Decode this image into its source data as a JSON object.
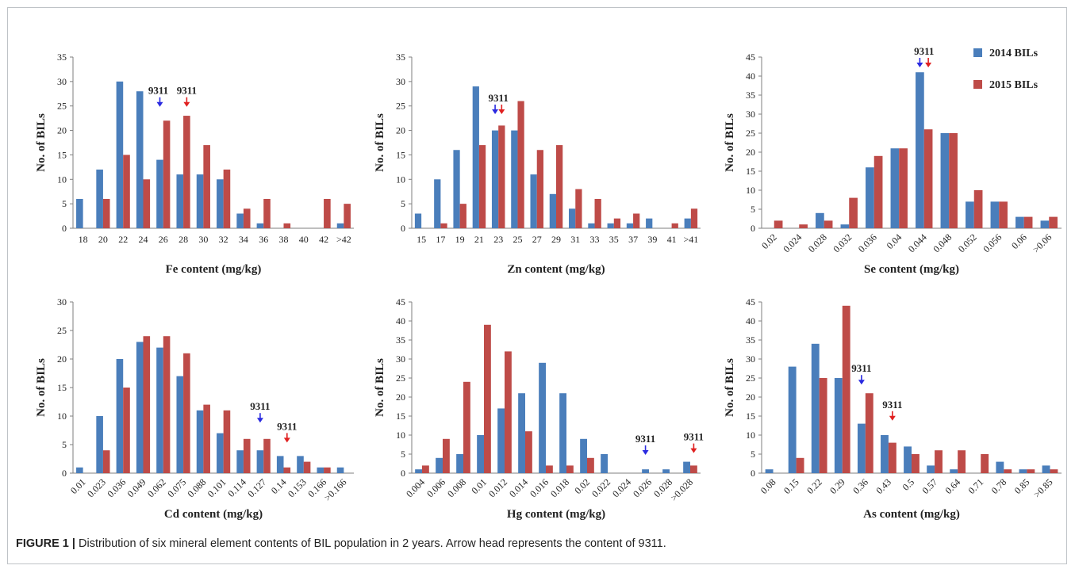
{
  "caption": {
    "label": "FIGURE 1 |",
    "text": "Distribution of six mineral element contents of BIL population in 2 years. Arrow head represents the content of 9311."
  },
  "colors": {
    "s2014": "#4a7ebb",
    "s2015": "#be4b48",
    "arrow2014": "#2a2ae0",
    "arrow2015": "#e02020",
    "axis": "#7f7f7f"
  },
  "legend": [
    {
      "name": "2014 BILs",
      "color": "#4a7ebb"
    },
    {
      "name": "2015 BILs",
      "color": "#be4b48"
    }
  ],
  "chart_data": [
    {
      "type": "bar",
      "title": "",
      "xlabel": "Fe content (mg/kg)",
      "ylabel": "No. of BILs",
      "ylim": [
        0,
        35
      ],
      "ystep": 5,
      "categories": [
        "18",
        "20",
        "22",
        "24",
        "26",
        "28",
        "30",
        "32",
        "34",
        "36",
        "38",
        "40",
        "42",
        ">42"
      ],
      "rotated_ticks": false,
      "series": [
        {
          "name": "2014 BILs",
          "values": [
            6,
            12,
            30,
            28,
            14,
            11,
            11,
            10,
            3,
            1,
            0,
            0,
            0,
            1
          ]
        },
        {
          "name": "2015 BILs",
          "values": [
            0,
            6,
            15,
            10,
            22,
            23,
            17,
            12,
            4,
            6,
            1,
            0,
            6,
            5
          ]
        }
      ],
      "annotations": [
        {
          "label": "9311",
          "series": 0,
          "category": 4,
          "y": 25
        },
        {
          "label": "9311",
          "series": 1,
          "category": 5,
          "y": 25
        }
      ]
    },
    {
      "type": "bar",
      "title": "",
      "xlabel": "Zn content (mg/kg)",
      "ylabel": "No. of BILs",
      "ylim": [
        0,
        35
      ],
      "ystep": 5,
      "categories": [
        "15",
        "17",
        "19",
        "21",
        "23",
        "25",
        "27",
        "29",
        "31",
        "33",
        "35",
        "37",
        "39",
        "41",
        ">41"
      ],
      "rotated_ticks": false,
      "series": [
        {
          "name": "2014 BILs",
          "values": [
            3,
            10,
            16,
            29,
            20,
            20,
            11,
            7,
            4,
            1,
            1,
            1,
            2,
            0,
            2
          ]
        },
        {
          "name": "2015 BILs",
          "values": [
            0,
            1,
            5,
            17,
            21,
            26,
            16,
            17,
            8,
            6,
            2,
            3,
            0,
            1,
            4
          ]
        }
      ],
      "annotations": [
        {
          "label": "9311",
          "series": 0,
          "category": 4,
          "y": 23.5
        },
        {
          "label": "9311",
          "series": 1,
          "category": 4,
          "y": 23.5
        }
      ]
    },
    {
      "type": "bar",
      "title": "",
      "xlabel": "Se content (mg/kg)",
      "ylabel": "No. of BILs",
      "ylim": [
        0,
        45
      ],
      "ystep": 5,
      "categories": [
        "0.02",
        "0.024",
        "0.028",
        "0.032",
        "0.036",
        "0.04",
        "0.044",
        "0.048",
        "0.052",
        "0.056",
        "0.06",
        ">0.06"
      ],
      "rotated_ticks": true,
      "series": [
        {
          "name": "2014 BILs",
          "values": [
            0,
            0,
            4,
            1,
            16,
            21,
            41,
            25,
            7,
            7,
            3,
            2
          ]
        },
        {
          "name": "2015 BILs",
          "values": [
            2,
            1,
            2,
            8,
            19,
            21,
            26,
            25,
            10,
            7,
            3,
            3
          ]
        }
      ],
      "annotations": [
        {
          "label": "9311",
          "series": 0,
          "category": 6,
          "y": 42.5
        },
        {
          "label": "9311",
          "series": 1,
          "category": 6,
          "y": 42.5
        }
      ],
      "legend": "top-right"
    },
    {
      "type": "bar",
      "title": "",
      "xlabel": "Cd content (mg/kg)",
      "ylabel": "No. of BILs",
      "ylim": [
        0,
        30
      ],
      "ystep": 5,
      "categories": [
        "0.01",
        "0.023",
        "0.036",
        "0.049",
        "0.062",
        "0.075",
        "0.088",
        "0.101",
        "0.114",
        "0.127",
        "0.14",
        "0.153",
        "0.166",
        ">0.166"
      ],
      "rotated_ticks": true,
      "series": [
        {
          "name": "2014 BILs",
          "values": [
            1,
            10,
            20,
            23,
            22,
            17,
            11,
            7,
            4,
            4,
            3,
            3,
            1,
            1
          ]
        },
        {
          "name": "2015 BILs",
          "values": [
            0,
            4,
            15,
            24,
            24,
            21,
            12,
            11,
            6,
            6,
            1,
            2,
            1,
            0
          ]
        }
      ],
      "annotations": [
        {
          "label": "9311",
          "series": 0,
          "category": 9,
          "y": 9
        },
        {
          "label": "9311",
          "series": 1,
          "category": 10,
          "y": 5.5
        }
      ]
    },
    {
      "type": "bar",
      "title": "",
      "xlabel": "Hg content (mg/kg)",
      "ylabel": "No. of BILs",
      "ylim": [
        0,
        45
      ],
      "ystep": 5,
      "categories": [
        "0.004",
        "0.006",
        "0.008",
        "0.01",
        "0.012",
        "0.014",
        "0.016",
        "0.018",
        "0.02",
        "0.022",
        "0.024",
        "0.026",
        "0.028",
        ">0.028"
      ],
      "rotated_ticks": true,
      "series": [
        {
          "name": "2014 BILs",
          "values": [
            1,
            4,
            5,
            10,
            17,
            21,
            29,
            21,
            9,
            5,
            0,
            1,
            1,
            3
          ]
        },
        {
          "name": "2015 BILs",
          "values": [
            2,
            9,
            24,
            39,
            32,
            11,
            2,
            2,
            4,
            0,
            0,
            0,
            0,
            2
          ]
        }
      ],
      "annotations": [
        {
          "label": "9311",
          "series": 0,
          "category": 11,
          "y": 5
        },
        {
          "label": "9311",
          "series": 1,
          "category": 13,
          "y": 5.5
        }
      ]
    },
    {
      "type": "bar",
      "title": "",
      "xlabel": "As content (mg/kg)",
      "ylabel": "No. of BILs",
      "ylim": [
        0,
        45
      ],
      "ystep": 5,
      "categories": [
        "0.08",
        "0.15",
        "0.22",
        "0.29",
        "0.36",
        "0.43",
        "0.5",
        "0.57",
        "0.64",
        "0.71",
        "0.78",
        "0.85",
        ">0.85"
      ],
      "rotated_ticks": true,
      "series": [
        {
          "name": "2014 BILs",
          "values": [
            1,
            28,
            34,
            25,
            13,
            10,
            7,
            2,
            1,
            0,
            3,
            1,
            2
          ]
        },
        {
          "name": "2015 BILs",
          "values": [
            0,
            4,
            25,
            44,
            21,
            8,
            5,
            6,
            6,
            5,
            1,
            1,
            1
          ]
        }
      ],
      "annotations": [
        {
          "label": "9311",
          "series": 0,
          "category": 4,
          "y": 23.5
        },
        {
          "label": "9311",
          "series": 1,
          "category": 5,
          "y": 14
        }
      ]
    }
  ]
}
